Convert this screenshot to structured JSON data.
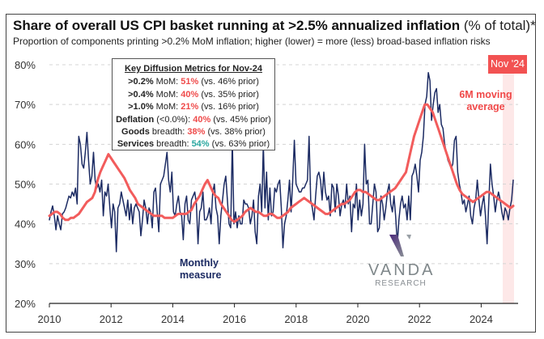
{
  "chart_data": {
    "type": "line",
    "title": "Share of overall US CPI basket running at >2.5% annualized inflation",
    "title_suffix": "(% of total)*",
    "subtitle": "Proportion of components printing >0.2% MoM inflation; higher (lower) = more (less) broad-based inflation risks",
    "xlabel": "",
    "ylabel": "",
    "x_start": "2010-01",
    "x_end": "2024-11",
    "xlim": [
      2010,
      2025.1
    ],
    "ylim": [
      20,
      80
    ],
    "x_ticks": [
      2010,
      2012,
      2014,
      2016,
      2018,
      2020,
      2022,
      2024
    ],
    "x_tick_labels": [
      "2010",
      "2012",
      "2014",
      "2016",
      "2018",
      "2020",
      "2022",
      "2024"
    ],
    "y_ticks": [
      20,
      30,
      40,
      50,
      60,
      70,
      80
    ],
    "y_tick_labels": [
      "20%",
      "30%",
      "40%",
      "50%",
      "60%",
      "70%",
      "80%"
    ],
    "grid": "horizontal-dashed",
    "series": [
      {
        "name": "Monthly measure",
        "color": "#1c2b63",
        "values": [
          41,
          43,
          44.5,
          42,
          38.5,
          42,
          40,
          38.5,
          42.5,
          43,
          44,
          45.5,
          47,
          46.5,
          48,
          47,
          49,
          45,
          62,
          60,
          55,
          54,
          58,
          63,
          56,
          50,
          52,
          58,
          51,
          49,
          50,
          48,
          51,
          42,
          48,
          47,
          50,
          44,
          39,
          45,
          43,
          33,
          44,
          45,
          48,
          46,
          44,
          42,
          46,
          41,
          45,
          40,
          44,
          45,
          44,
          43,
          37,
          41,
          46,
          44,
          40,
          44,
          43,
          39,
          48,
          49,
          43,
          38,
          50,
          51,
          52,
          55,
          58,
          51,
          48,
          53,
          43,
          42,
          45,
          47,
          43,
          42,
          36,
          45,
          47,
          41,
          40,
          46,
          47,
          48,
          45,
          35,
          43,
          44,
          48,
          41,
          41,
          42,
          44,
          40,
          48,
          50,
          44,
          42,
          35,
          42,
          46,
          50,
          52,
          46,
          40,
          39,
          61,
          40,
          43,
          39,
          42,
          40,
          40,
          46,
          45,
          45,
          44,
          40,
          42,
          46,
          38,
          35,
          47,
          50,
          43,
          60,
          44,
          53,
          41,
          49,
          42,
          43,
          49,
          48,
          50,
          51,
          44,
          34,
          40,
          42,
          46,
          51,
          43,
          51,
          61,
          50,
          49,
          48,
          48,
          49,
          49,
          50,
          51,
          62,
          46,
          44,
          41,
          47,
          52,
          53,
          51,
          46,
          53,
          48,
          46,
          47,
          42,
          50,
          49,
          43,
          50,
          47,
          42,
          45,
          46,
          44,
          50,
          45,
          47,
          38,
          45,
          44,
          50,
          41,
          46,
          42,
          45,
          60,
          50,
          51,
          40,
          40,
          45,
          50,
          48,
          38,
          39,
          47,
          45,
          41,
          44,
          48,
          50,
          45,
          43,
          47,
          42,
          35,
          41,
          45,
          47,
          44,
          45,
          41,
          47,
          41,
          52,
          53,
          55,
          52,
          48,
          56,
          58,
          62,
          70,
          72,
          78,
          76,
          66,
          70,
          73,
          74,
          68,
          70,
          65,
          64,
          60,
          58,
          56,
          55,
          54,
          55,
          61,
          62,
          53,
          50,
          48,
          45,
          46,
          43,
          45,
          47,
          42,
          40,
          44,
          46,
          51,
          46,
          42,
          45,
          47,
          42,
          35,
          45,
          55,
          50,
          47,
          43,
          46,
          48,
          46,
          43,
          41,
          44,
          43,
          41,
          44,
          46,
          51
        ],
        "note": "approximate, read from chart"
      },
      {
        "name": "6M moving average",
        "color": "#f25c5c",
        "values": [
          42,
          42.5,
          43,
          43,
          42.5,
          41.5,
          41,
          41,
          41.5,
          41.5,
          42,
          42.5,
          43.5,
          44.5,
          45.5,
          46,
          46.5,
          48,
          51,
          53,
          54.5,
          56,
          57.5,
          56.5,
          55.5,
          54.5,
          53.5,
          52.5,
          51.5,
          50,
          48.5,
          47.5,
          46.5,
          45,
          44.5,
          44,
          43.5,
          43,
          42.5,
          42,
          42,
          42,
          42,
          41.5,
          41.5,
          41.5,
          41.5,
          42,
          42.5,
          42.5,
          42.5,
          42.5,
          43,
          43.5,
          45,
          46,
          47,
          48.5,
          50,
          51,
          49.5,
          48,
          47,
          46.5,
          45,
          44,
          43,
          42,
          41,
          40.5,
          41,
          41.5,
          42,
          43,
          43.5,
          44,
          43.5,
          43,
          43,
          42.5,
          42,
          42,
          42.5,
          42.5,
          42,
          41.5,
          41.5,
          42,
          42.5,
          43,
          44,
          44.5,
          45,
          45.5,
          46,
          46.5,
          46,
          45.5,
          45,
          44.5,
          44,
          43.5,
          43,
          42.5,
          42.5,
          43,
          43.5,
          44,
          44.5,
          45,
          45,
          45.5,
          46,
          47,
          48,
          48.5,
          48.5,
          48,
          48,
          47.5,
          47,
          46.5,
          46,
          46,
          46.5,
          47,
          47.5,
          48,
          48.5,
          49,
          50,
          51,
          52,
          53,
          56,
          59,
          62,
          64,
          66,
          68,
          70,
          70,
          69,
          68,
          66,
          64,
          62,
          60,
          58,
          56,
          54,
          52,
          50,
          48.5,
          47.5,
          47,
          46.5,
          46,
          45.5,
          46,
          46.5,
          47,
          47.5,
          48,
          48,
          47.5,
          47,
          46.5,
          46,
          45.5,
          45,
          44.5,
          44,
          44.5
        ],
        "note": "approximate, read from chart"
      }
    ],
    "highlight": {
      "label": "Nov '24",
      "x": "2024-11",
      "color": "#fde8e8"
    },
    "annotations": [
      {
        "text_line1": "6M moving",
        "text_line2": "average",
        "color": "#f04848"
      },
      {
        "text_line1": "Monthly",
        "text_line2": "measure",
        "color": "#1c2b63"
      }
    ]
  },
  "metrics_box": {
    "heading": "Key Diffusion Metrics for Nov-24",
    "rows": [
      {
        "label_bold": ">0.2%",
        "label_rest": " MoM: ",
        "value": "51%",
        "value_color": "red",
        "prior": " (vs. 46% prior)"
      },
      {
        "label_bold": ">0.4%",
        "label_rest": " MoM: ",
        "value": "40%",
        "value_color": "red",
        "prior": " (vs. 35% prior)"
      },
      {
        "label_bold": ">1.0%",
        "label_rest": " MoM: ",
        "value": "21%",
        "value_color": "red",
        "prior": " (vs. 16% prior)"
      },
      {
        "label_bold": "Deflation",
        "label_rest": " (<0.0%): ",
        "value": "40%",
        "value_color": "red",
        "prior": " (vs. 45% prior)"
      },
      {
        "label_bold": "Goods",
        "label_rest": " breadth: ",
        "value": "38%",
        "value_color": "red",
        "prior": " (vs. 38% prior)"
      },
      {
        "label_bold": "Services",
        "label_rest": " breadth: ",
        "value": "54%",
        "value_color": "teal",
        "prior": " (vs. 63% prior)"
      }
    ]
  },
  "logo": {
    "name": "VANDA",
    "sub": "RESEARCH"
  }
}
